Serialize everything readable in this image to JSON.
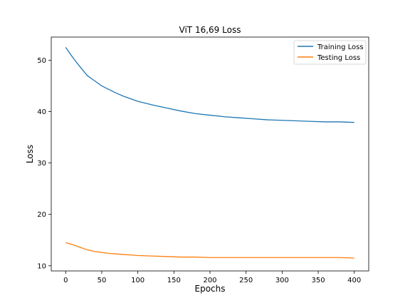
{
  "chart_data": {
    "type": "line",
    "title": "ViT 16,69 Loss",
    "xlabel": "Epochs",
    "ylabel": "Loss",
    "xlim": [
      -20,
      420
    ],
    "ylim": [
      9.0,
      54.5
    ],
    "xticks": [
      0,
      50,
      100,
      150,
      200,
      250,
      300,
      350,
      400
    ],
    "yticks": [
      10,
      20,
      30,
      40,
      50
    ],
    "grid": false,
    "legend_position": "top-right",
    "series": [
      {
        "name": "Training Loss",
        "color": "#1f77b4",
        "x": [
          0,
          10,
          20,
          30,
          40,
          50,
          60,
          70,
          80,
          90,
          100,
          120,
          140,
          160,
          180,
          200,
          220,
          240,
          260,
          280,
          300,
          320,
          340,
          360,
          380,
          400
        ],
        "y": [
          52.5,
          50.5,
          48.7,
          47.0,
          46.0,
          45.0,
          44.3,
          43.6,
          43.0,
          42.5,
          42.0,
          41.3,
          40.7,
          40.1,
          39.6,
          39.3,
          39.0,
          38.8,
          38.6,
          38.4,
          38.3,
          38.2,
          38.1,
          38.0,
          38.0,
          37.9
        ]
      },
      {
        "name": "Testing Loss",
        "color": "#ff7f0e",
        "x": [
          0,
          10,
          20,
          30,
          40,
          50,
          60,
          70,
          80,
          90,
          100,
          120,
          140,
          160,
          180,
          200,
          220,
          240,
          260,
          280,
          300,
          320,
          340,
          360,
          380,
          400
        ],
        "y": [
          14.5,
          14.1,
          13.6,
          13.1,
          12.8,
          12.6,
          12.4,
          12.3,
          12.2,
          12.1,
          12.0,
          11.9,
          11.8,
          11.7,
          11.7,
          11.6,
          11.6,
          11.6,
          11.6,
          11.6,
          11.6,
          11.6,
          11.6,
          11.6,
          11.6,
          11.5
        ]
      }
    ]
  }
}
